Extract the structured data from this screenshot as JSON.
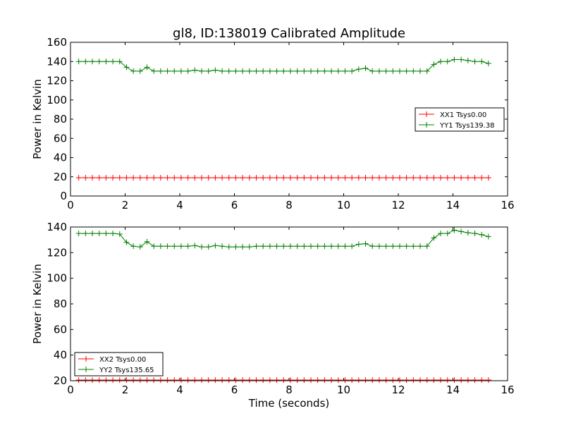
{
  "chart_data": [
    {
      "type": "line",
      "title": "gl8, ID:138019 Calibrated Amplitude",
      "xlabel": "",
      "ylabel": "Power in Kelvin",
      "xlim": [
        0,
        16
      ],
      "ylim": [
        0,
        160
      ],
      "xticks": [
        0,
        2,
        4,
        6,
        8,
        10,
        12,
        14,
        16
      ],
      "yticks": [
        0,
        20,
        40,
        60,
        80,
        100,
        120,
        140,
        160
      ],
      "grid": false,
      "legend_position": "center-right",
      "x": [
        0.3,
        0.55,
        0.8,
        1.05,
        1.3,
        1.55,
        1.8,
        2.05,
        2.3,
        2.55,
        2.8,
        3.05,
        3.3,
        3.55,
        3.8,
        4.05,
        4.3,
        4.55,
        4.8,
        5.05,
        5.3,
        5.55,
        5.8,
        6.05,
        6.3,
        6.55,
        6.8,
        7.05,
        7.3,
        7.55,
        7.8,
        8.05,
        8.3,
        8.55,
        8.8,
        9.05,
        9.3,
        9.55,
        9.8,
        10.05,
        10.3,
        10.55,
        10.8,
        11.05,
        11.3,
        11.55,
        11.8,
        12.05,
        12.3,
        12.55,
        12.8,
        13.05,
        13.3,
        13.55,
        13.8,
        14.05,
        14.3,
        14.55,
        14.8,
        15.05,
        15.3
      ],
      "series": [
        {
          "name": "XX1 Tsys0.00",
          "color": "#ff0000",
          "values": [
            19,
            19,
            19,
            19,
            19,
            19,
            19,
            19,
            19,
            19,
            19,
            19,
            19,
            19,
            19,
            19,
            19,
            19,
            19,
            19,
            19,
            19,
            19,
            19,
            19,
            19,
            19,
            19,
            19,
            19,
            19,
            19,
            19,
            19,
            19,
            19,
            19,
            19,
            19,
            19,
            19,
            19,
            19,
            19,
            19,
            19,
            19,
            19,
            19,
            19,
            19,
            19,
            19,
            19,
            19,
            19,
            19,
            19,
            19,
            19,
            19
          ]
        },
        {
          "name": "YY1 Tsys139.38",
          "color": "#008000",
          "values": [
            140,
            140,
            140,
            140,
            140,
            140,
            140,
            134,
            130,
            130,
            134,
            130,
            130,
            130,
            130,
            130,
            130,
            131,
            130,
            130,
            131,
            130,
            130,
            130,
            130,
            130,
            130,
            130,
            130,
            130,
            130,
            130,
            130,
            130,
            130,
            130,
            130,
            130,
            130,
            130,
            130,
            132,
            133,
            130,
            130,
            130,
            130,
            130,
            130,
            130,
            130,
            130,
            137,
            140,
            140,
            142,
            142,
            141,
            140,
            140,
            138
          ]
        }
      ]
    },
    {
      "type": "line",
      "title": "",
      "xlabel": "Time (seconds)",
      "ylabel": "Power in Kelvin",
      "xlim": [
        0,
        16
      ],
      "ylim": [
        20,
        140
      ],
      "xticks": [
        0,
        2,
        4,
        6,
        8,
        10,
        12,
        14,
        16
      ],
      "yticks": [
        20,
        40,
        60,
        80,
        100,
        120,
        140
      ],
      "grid": false,
      "legend_position": "lower-left",
      "x": [
        0.3,
        0.55,
        0.8,
        1.05,
        1.3,
        1.55,
        1.8,
        2.05,
        2.3,
        2.55,
        2.8,
        3.05,
        3.3,
        3.55,
        3.8,
        4.05,
        4.3,
        4.55,
        4.8,
        5.05,
        5.3,
        5.55,
        5.8,
        6.05,
        6.3,
        6.55,
        6.8,
        7.05,
        7.3,
        7.55,
        7.8,
        8.05,
        8.3,
        8.55,
        8.8,
        9.05,
        9.3,
        9.55,
        9.8,
        10.05,
        10.3,
        10.55,
        10.8,
        11.05,
        11.3,
        11.55,
        11.8,
        12.05,
        12.3,
        12.55,
        12.8,
        13.05,
        13.3,
        13.55,
        13.8,
        14.05,
        14.3,
        14.55,
        14.8,
        15.05,
        15.3
      ],
      "series": [
        {
          "name": "XX2 Tsys0.00",
          "color": "#ff0000",
          "values": [
            20.5,
            20.5,
            20.5,
            20.5,
            20.5,
            20.5,
            20.5,
            20.5,
            20.5,
            20.5,
            20.5,
            20.5,
            20.5,
            20.5,
            20.5,
            20.5,
            20.5,
            20.5,
            20.5,
            20.5,
            20.5,
            20.5,
            20.5,
            20.5,
            20.5,
            20.5,
            20.5,
            20.5,
            20.5,
            20.5,
            20.5,
            20.5,
            20.5,
            20.5,
            20.5,
            20.5,
            20.5,
            20.5,
            20.5,
            20.5,
            20.5,
            20.5,
            20.5,
            20.5,
            20.5,
            20.5,
            20.5,
            20.5,
            20.5,
            20.5,
            20.5,
            20.5,
            20.5,
            20.5,
            20.5,
            20.5,
            20.5,
            20.5,
            20.5,
            20.5,
            20.5
          ]
        },
        {
          "name": "YY2 Tsys135.65",
          "color": "#008000",
          "values": [
            135,
            135,
            135,
            135,
            135,
            135,
            134.5,
            128,
            125,
            124.5,
            128.5,
            125,
            125,
            125,
            125,
            125,
            125,
            125.5,
            124.5,
            124.5,
            125.5,
            125,
            124.5,
            124.5,
            124.5,
            124.5,
            125,
            125,
            125,
            125,
            125,
            125,
            125,
            125,
            125,
            125,
            125,
            125,
            125,
            125,
            125,
            126.5,
            127,
            125,
            125,
            125,
            125,
            125,
            125,
            125,
            125,
            125,
            131.5,
            135,
            135,
            137.5,
            136.5,
            135.5,
            135,
            134,
            132.5
          ]
        }
      ]
    }
  ]
}
